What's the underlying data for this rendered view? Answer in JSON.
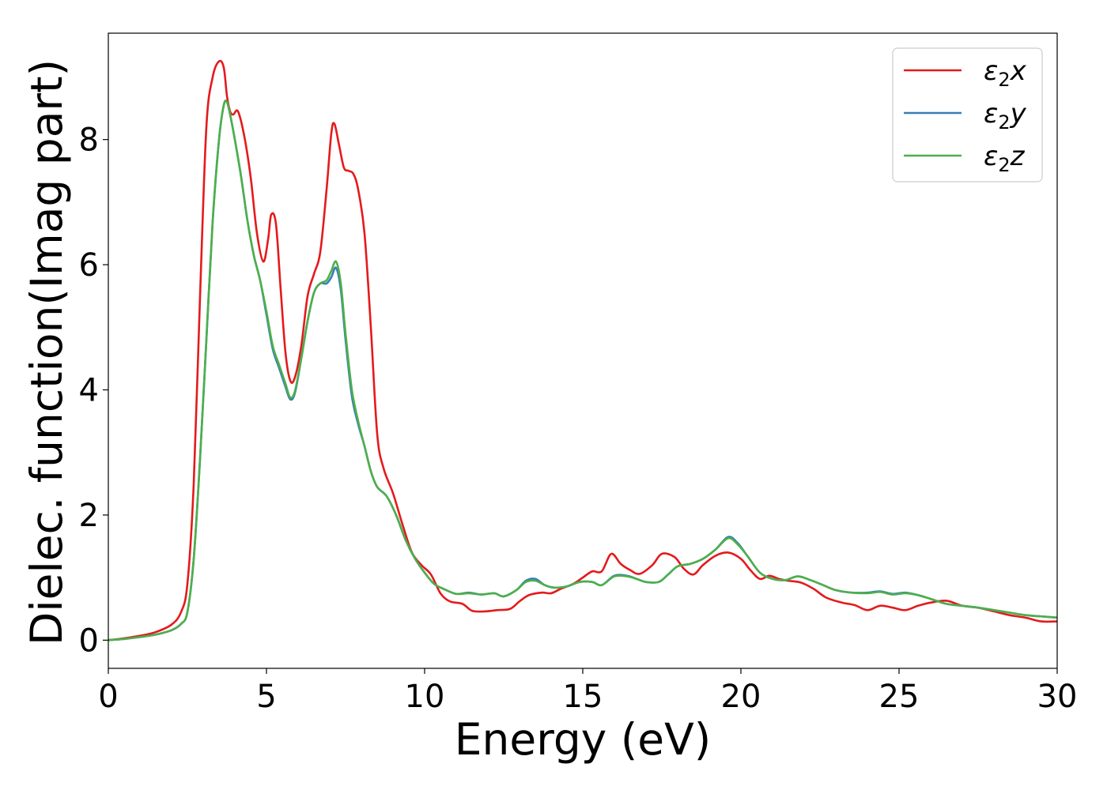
{
  "chart_data": {
    "type": "line",
    "xlabel": "Energy (eV)",
    "ylabel": "Dielec. function(Imag part)",
    "xlim": [
      0,
      30
    ],
    "ylim": [
      -0.45,
      9.7
    ],
    "xticks": [
      "0",
      "5",
      "10",
      "15",
      "20",
      "25",
      "30"
    ],
    "yticks": [
      "0",
      "2",
      "4",
      "6",
      "8"
    ],
    "grid": false,
    "legend_position": "top-right",
    "series": [
      {
        "name_main": "ε",
        "name_sub": "2",
        "name_suffix": "x",
        "color": "#e41a1c",
        "points": [
          [
            0,
            0
          ],
          [
            0.5,
            0.03
          ],
          [
            1.0,
            0.07
          ],
          [
            1.5,
            0.13
          ],
          [
            2.0,
            0.25
          ],
          [
            2.3,
            0.45
          ],
          [
            2.5,
            0.9
          ],
          [
            2.7,
            2.5
          ],
          [
            2.9,
            5.5
          ],
          [
            3.1,
            8.2
          ],
          [
            3.3,
            9.0
          ],
          [
            3.5,
            9.25
          ],
          [
            3.65,
            9.15
          ],
          [
            3.75,
            8.7
          ],
          [
            3.85,
            8.45
          ],
          [
            3.95,
            8.4
          ],
          [
            4.1,
            8.45
          ],
          [
            4.3,
            8.05
          ],
          [
            4.5,
            7.4
          ],
          [
            4.7,
            6.5
          ],
          [
            4.9,
            6.05
          ],
          [
            5.05,
            6.4
          ],
          [
            5.15,
            6.8
          ],
          [
            5.3,
            6.65
          ],
          [
            5.45,
            5.6
          ],
          [
            5.6,
            4.6
          ],
          [
            5.75,
            4.15
          ],
          [
            5.9,
            4.2
          ],
          [
            6.1,
            4.7
          ],
          [
            6.3,
            5.5
          ],
          [
            6.5,
            5.85
          ],
          [
            6.7,
            6.2
          ],
          [
            6.9,
            7.2
          ],
          [
            7.05,
            8.1
          ],
          [
            7.15,
            8.25
          ],
          [
            7.3,
            7.9
          ],
          [
            7.45,
            7.55
          ],
          [
            7.6,
            7.5
          ],
          [
            7.75,
            7.45
          ],
          [
            7.9,
            7.2
          ],
          [
            8.1,
            6.5
          ],
          [
            8.3,
            5.0
          ],
          [
            8.5,
            3.3
          ],
          [
            8.7,
            2.75
          ],
          [
            9.0,
            2.35
          ],
          [
            9.3,
            1.85
          ],
          [
            9.6,
            1.4
          ],
          [
            9.9,
            1.2
          ],
          [
            10.2,
            1.05
          ],
          [
            10.5,
            0.75
          ],
          [
            10.8,
            0.62
          ],
          [
            11.2,
            0.58
          ],
          [
            11.5,
            0.47
          ],
          [
            11.9,
            0.46
          ],
          [
            12.3,
            0.48
          ],
          [
            12.7,
            0.5
          ],
          [
            13.0,
            0.62
          ],
          [
            13.3,
            0.72
          ],
          [
            13.7,
            0.76
          ],
          [
            14.0,
            0.75
          ],
          [
            14.3,
            0.82
          ],
          [
            14.7,
            0.9
          ],
          [
            15.0,
            1.0
          ],
          [
            15.3,
            1.1
          ],
          [
            15.6,
            1.1
          ],
          [
            15.9,
            1.38
          ],
          [
            16.2,
            1.22
          ],
          [
            16.5,
            1.12
          ],
          [
            16.8,
            1.06
          ],
          [
            17.2,
            1.2
          ],
          [
            17.5,
            1.38
          ],
          [
            17.9,
            1.33
          ],
          [
            18.2,
            1.14
          ],
          [
            18.5,
            1.05
          ],
          [
            18.8,
            1.2
          ],
          [
            19.2,
            1.35
          ],
          [
            19.6,
            1.4
          ],
          [
            20.0,
            1.3
          ],
          [
            20.3,
            1.12
          ],
          [
            20.6,
            0.98
          ],
          [
            20.9,
            1.03
          ],
          [
            21.2,
            0.98
          ],
          [
            21.5,
            0.95
          ],
          [
            21.9,
            0.92
          ],
          [
            22.3,
            0.82
          ],
          [
            22.7,
            0.68
          ],
          [
            23.2,
            0.6
          ],
          [
            23.6,
            0.56
          ],
          [
            24.0,
            0.48
          ],
          [
            24.4,
            0.55
          ],
          [
            24.8,
            0.52
          ],
          [
            25.2,
            0.48
          ],
          [
            25.6,
            0.55
          ],
          [
            26.0,
            0.6
          ],
          [
            26.5,
            0.63
          ],
          [
            27.0,
            0.55
          ],
          [
            27.5,
            0.52
          ],
          [
            28.0,
            0.46
          ],
          [
            28.5,
            0.4
          ],
          [
            29.0,
            0.36
          ],
          [
            29.5,
            0.3
          ],
          [
            30.0,
            0.3
          ]
        ]
      },
      {
        "name_main": "ε",
        "name_sub": "2",
        "name_suffix": "y",
        "color": "#377eb8",
        "points": [
          [
            0,
            0
          ],
          [
            0.5,
            0.02
          ],
          [
            1.0,
            0.05
          ],
          [
            1.5,
            0.09
          ],
          [
            2.0,
            0.16
          ],
          [
            2.3,
            0.26
          ],
          [
            2.5,
            0.45
          ],
          [
            2.7,
            1.3
          ],
          [
            2.9,
            2.9
          ],
          [
            3.1,
            4.8
          ],
          [
            3.3,
            6.7
          ],
          [
            3.5,
            8.0
          ],
          [
            3.65,
            8.55
          ],
          [
            3.75,
            8.6
          ],
          [
            3.85,
            8.4
          ],
          [
            4.0,
            8.0
          ],
          [
            4.2,
            7.4
          ],
          [
            4.4,
            6.7
          ],
          [
            4.6,
            6.15
          ],
          [
            4.8,
            5.75
          ],
          [
            5.0,
            5.2
          ],
          [
            5.2,
            4.65
          ],
          [
            5.4,
            4.35
          ],
          [
            5.6,
            4.05
          ],
          [
            5.75,
            3.85
          ],
          [
            5.9,
            3.95
          ],
          [
            6.1,
            4.5
          ],
          [
            6.3,
            5.1
          ],
          [
            6.5,
            5.55
          ],
          [
            6.7,
            5.7
          ],
          [
            6.9,
            5.7
          ],
          [
            7.05,
            5.8
          ],
          [
            7.2,
            5.95
          ],
          [
            7.35,
            5.6
          ],
          [
            7.5,
            4.8
          ],
          [
            7.7,
            3.9
          ],
          [
            7.9,
            3.45
          ],
          [
            8.1,
            3.1
          ],
          [
            8.3,
            2.7
          ],
          [
            8.5,
            2.45
          ],
          [
            8.8,
            2.3
          ],
          [
            9.1,
            2.0
          ],
          [
            9.4,
            1.6
          ],
          [
            9.7,
            1.3
          ],
          [
            10.0,
            1.08
          ],
          [
            10.3,
            0.9
          ],
          [
            10.6,
            0.82
          ],
          [
            11.0,
            0.74
          ],
          [
            11.4,
            0.76
          ],
          [
            11.8,
            0.73
          ],
          [
            12.2,
            0.75
          ],
          [
            12.5,
            0.7
          ],
          [
            12.9,
            0.8
          ],
          [
            13.2,
            0.95
          ],
          [
            13.5,
            0.98
          ],
          [
            13.8,
            0.88
          ],
          [
            14.1,
            0.84
          ],
          [
            14.5,
            0.86
          ],
          [
            14.9,
            0.93
          ],
          [
            15.3,
            0.93
          ],
          [
            15.6,
            0.88
          ],
          [
            16.0,
            1.03
          ],
          [
            16.4,
            1.03
          ],
          [
            16.7,
            0.98
          ],
          [
            17.0,
            0.93
          ],
          [
            17.4,
            0.93
          ],
          [
            17.7,
            1.05
          ],
          [
            18.0,
            1.18
          ],
          [
            18.4,
            1.22
          ],
          [
            18.8,
            1.3
          ],
          [
            19.2,
            1.45
          ],
          [
            19.6,
            1.65
          ],
          [
            19.9,
            1.55
          ],
          [
            20.2,
            1.35
          ],
          [
            20.6,
            1.08
          ],
          [
            21.0,
            0.98
          ],
          [
            21.4,
            0.96
          ],
          [
            21.8,
            1.02
          ],
          [
            22.2,
            0.96
          ],
          [
            22.6,
            0.88
          ],
          [
            23.0,
            0.8
          ],
          [
            23.5,
            0.76
          ],
          [
            24.0,
            0.76
          ],
          [
            24.4,
            0.78
          ],
          [
            24.8,
            0.74
          ],
          [
            25.2,
            0.76
          ],
          [
            25.6,
            0.72
          ],
          [
            26.0,
            0.66
          ],
          [
            26.5,
            0.58
          ],
          [
            27.0,
            0.55
          ],
          [
            27.5,
            0.52
          ],
          [
            28.0,
            0.48
          ],
          [
            28.5,
            0.44
          ],
          [
            29.0,
            0.4
          ],
          [
            29.5,
            0.38
          ],
          [
            30.0,
            0.36
          ]
        ]
      },
      {
        "name_main": "ε",
        "name_sub": "2",
        "name_suffix": "z",
        "color": "#4daf4a",
        "points": [
          [
            0,
            0
          ],
          [
            0.5,
            0.02
          ],
          [
            1.0,
            0.05
          ],
          [
            1.5,
            0.09
          ],
          [
            2.0,
            0.16
          ],
          [
            2.3,
            0.26
          ],
          [
            2.5,
            0.45
          ],
          [
            2.7,
            1.3
          ],
          [
            2.9,
            2.9
          ],
          [
            3.1,
            4.8
          ],
          [
            3.3,
            6.7
          ],
          [
            3.5,
            8.0
          ],
          [
            3.65,
            8.55
          ],
          [
            3.75,
            8.6
          ],
          [
            3.85,
            8.4
          ],
          [
            4.0,
            8.0
          ],
          [
            4.2,
            7.4
          ],
          [
            4.4,
            6.7
          ],
          [
            4.6,
            6.15
          ],
          [
            4.8,
            5.75
          ],
          [
            5.0,
            5.25
          ],
          [
            5.2,
            4.7
          ],
          [
            5.4,
            4.4
          ],
          [
            5.6,
            4.1
          ],
          [
            5.75,
            3.88
          ],
          [
            5.9,
            3.98
          ],
          [
            6.1,
            4.5
          ],
          [
            6.3,
            5.1
          ],
          [
            6.5,
            5.55
          ],
          [
            6.7,
            5.7
          ],
          [
            6.9,
            5.75
          ],
          [
            7.05,
            5.9
          ],
          [
            7.2,
            6.05
          ],
          [
            7.35,
            5.7
          ],
          [
            7.5,
            4.9
          ],
          [
            7.7,
            4.0
          ],
          [
            7.9,
            3.5
          ],
          [
            8.1,
            3.1
          ],
          [
            8.3,
            2.7
          ],
          [
            8.5,
            2.45
          ],
          [
            8.8,
            2.3
          ],
          [
            9.1,
            2.0
          ],
          [
            9.4,
            1.6
          ],
          [
            9.7,
            1.3
          ],
          [
            10.0,
            1.08
          ],
          [
            10.3,
            0.9
          ],
          [
            10.6,
            0.82
          ],
          [
            11.0,
            0.74
          ],
          [
            11.4,
            0.75
          ],
          [
            11.8,
            0.73
          ],
          [
            12.2,
            0.75
          ],
          [
            12.5,
            0.7
          ],
          [
            12.9,
            0.8
          ],
          [
            13.2,
            0.93
          ],
          [
            13.5,
            0.95
          ],
          [
            13.8,
            0.88
          ],
          [
            14.1,
            0.84
          ],
          [
            14.5,
            0.86
          ],
          [
            14.9,
            0.93
          ],
          [
            15.3,
            0.93
          ],
          [
            15.6,
            0.88
          ],
          [
            16.0,
            1.02
          ],
          [
            16.4,
            1.02
          ],
          [
            16.7,
            0.98
          ],
          [
            17.0,
            0.93
          ],
          [
            17.4,
            0.93
          ],
          [
            17.7,
            1.05
          ],
          [
            18.0,
            1.18
          ],
          [
            18.4,
            1.22
          ],
          [
            18.8,
            1.3
          ],
          [
            19.2,
            1.45
          ],
          [
            19.6,
            1.63
          ],
          [
            19.9,
            1.53
          ],
          [
            20.2,
            1.35
          ],
          [
            20.6,
            1.08
          ],
          [
            21.0,
            0.98
          ],
          [
            21.4,
            0.96
          ],
          [
            21.8,
            1.02
          ],
          [
            22.2,
            0.96
          ],
          [
            22.6,
            0.88
          ],
          [
            23.0,
            0.8
          ],
          [
            23.5,
            0.76
          ],
          [
            24.0,
            0.75
          ],
          [
            24.4,
            0.77
          ],
          [
            24.8,
            0.73
          ],
          [
            25.2,
            0.75
          ],
          [
            25.6,
            0.72
          ],
          [
            26.0,
            0.66
          ],
          [
            26.5,
            0.58
          ],
          [
            27.0,
            0.55
          ],
          [
            27.5,
            0.52
          ],
          [
            28.0,
            0.48
          ],
          [
            28.5,
            0.44
          ],
          [
            29.0,
            0.4
          ],
          [
            29.5,
            0.38
          ],
          [
            30.0,
            0.36
          ]
        ]
      }
    ]
  }
}
